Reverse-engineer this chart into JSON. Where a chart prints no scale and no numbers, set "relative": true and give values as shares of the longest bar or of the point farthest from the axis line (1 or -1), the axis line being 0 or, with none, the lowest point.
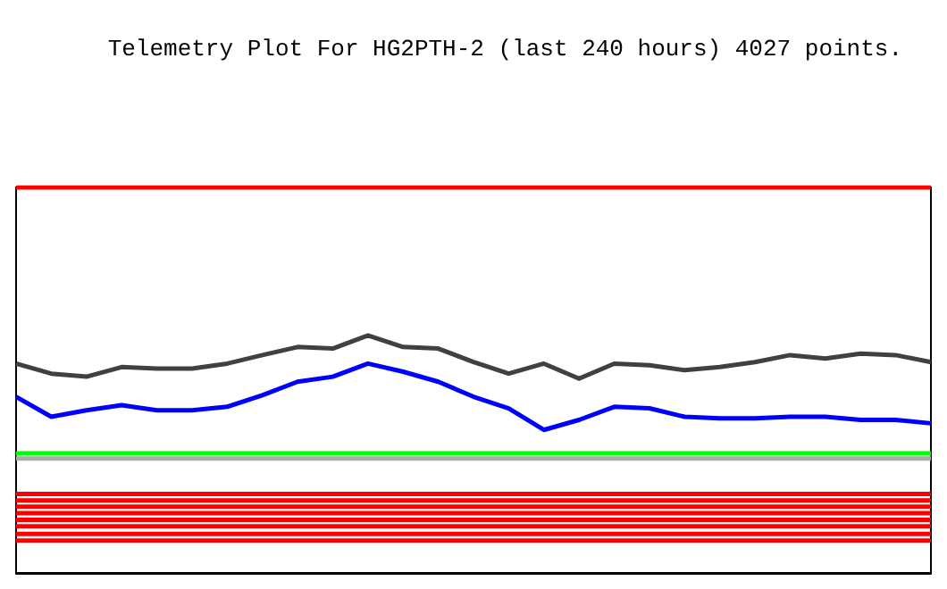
{
  "chart_data": {
    "type": "line",
    "title": "Telemetry Plot For HG2PTH-2 (last 240 hours) 4027 points.",
    "relative": true,
    "marker": "none",
    "line_style": "solid",
    "categories": [
      null,
      null,
      null,
      null,
      null,
      null,
      null,
      null,
      null,
      null,
      null,
      null,
      null,
      null,
      null,
      null,
      null,
      null,
      null,
      null,
      null,
      null,
      null,
      null,
      null,
      null,
      null
    ],
    "series": [
      {
        "color": "#ff0000",
        "values": [
          1,
          1,
          1,
          1,
          1,
          1,
          1,
          1,
          1,
          1,
          1,
          1,
          1,
          1,
          1,
          1,
          1,
          1,
          1,
          1,
          1,
          1,
          1,
          1,
          1,
          1,
          1
        ]
      },
      {
        "color": "#404040",
        "values": [
          0.543,
          0.517,
          0.509,
          0.534,
          0.53,
          0.53,
          0.543,
          0.565,
          0.586,
          0.582,
          0.616,
          0.586,
          0.582,
          0.547,
          0.517,
          0.543,
          0.504,
          0.543,
          0.539,
          0.526,
          0.534,
          0.547,
          0.565,
          0.556,
          0.569,
          0.565,
          0.547
        ]
      },
      {
        "color": "#0000ff",
        "values": [
          0.457,
          0.405,
          0.422,
          0.435,
          0.422,
          0.422,
          0.431,
          0.461,
          0.496,
          0.509,
          0.543,
          0.522,
          0.496,
          0.457,
          0.427,
          0.371,
          0.397,
          0.431,
          0.427,
          0.405,
          0.401,
          0.401,
          0.405,
          0.405,
          0.397,
          0.397,
          0.388
        ]
      },
      {
        "color": "#00ff00",
        "values": [
          0.31,
          0.31,
          0.31,
          0.31,
          0.31,
          0.31,
          0.31,
          0.31,
          0.31,
          0.31,
          0.31,
          0.31,
          0.31,
          0.31,
          0.31,
          0.31,
          0.31,
          0.31,
          0.31,
          0.31,
          0.31,
          0.31,
          0.31,
          0.31,
          0.31,
          0.31,
          0.31
        ]
      },
      {
        "color": "#aaaaaa",
        "values": [
          0.297,
          0.297,
          0.297,
          0.297,
          0.297,
          0.297,
          0.297,
          0.297,
          0.297,
          0.297,
          0.297,
          0.297,
          0.297,
          0.297,
          0.297,
          0.297,
          0.297,
          0.297,
          0.297,
          0.297,
          0.297,
          0.297,
          0.297,
          0.297,
          0.297,
          0.297,
          0.297
        ]
      },
      {
        "color": "#ff0000",
        "values": [
          0.205,
          0.205,
          0.205,
          0.205,
          0.205,
          0.205,
          0.205,
          0.205,
          0.205,
          0.205,
          0.205,
          0.205,
          0.205,
          0.205,
          0.205,
          0.205,
          0.205,
          0.205,
          0.205,
          0.205,
          0.205,
          0.205,
          0.205,
          0.205,
          0.205,
          0.205,
          0.205
        ]
      },
      {
        "color": "#ff0000",
        "values": [
          0.188,
          0.188,
          0.188,
          0.188,
          0.188,
          0.188,
          0.188,
          0.188,
          0.188,
          0.188,
          0.188,
          0.188,
          0.188,
          0.188,
          0.188,
          0.188,
          0.188,
          0.188,
          0.188,
          0.188,
          0.188,
          0.188,
          0.188,
          0.188,
          0.188,
          0.188,
          0.188
        ]
      },
      {
        "color": "#ff0000",
        "values": [
          0.172,
          0.172,
          0.172,
          0.172,
          0.172,
          0.172,
          0.172,
          0.172,
          0.172,
          0.172,
          0.172,
          0.172,
          0.172,
          0.172,
          0.172,
          0.172,
          0.172,
          0.172,
          0.172,
          0.172,
          0.172,
          0.172,
          0.172,
          0.172,
          0.172,
          0.172,
          0.172
        ]
      },
      {
        "color": "#ff0000",
        "values": [
          0.155,
          0.155,
          0.155,
          0.155,
          0.155,
          0.155,
          0.155,
          0.155,
          0.155,
          0.155,
          0.155,
          0.155,
          0.155,
          0.155,
          0.155,
          0.155,
          0.155,
          0.155,
          0.155,
          0.155,
          0.155,
          0.155,
          0.155,
          0.155,
          0.155,
          0.155,
          0.155
        ]
      },
      {
        "color": "#ff0000",
        "values": [
          0.138,
          0.138,
          0.138,
          0.138,
          0.138,
          0.138,
          0.138,
          0.138,
          0.138,
          0.138,
          0.138,
          0.138,
          0.138,
          0.138,
          0.138,
          0.138,
          0.138,
          0.138,
          0.138,
          0.138,
          0.138,
          0.138,
          0.138,
          0.138,
          0.138,
          0.138,
          0.138
        ]
      },
      {
        "color": "#ff0000",
        "values": [
          0.121,
          0.121,
          0.121,
          0.121,
          0.121,
          0.121,
          0.121,
          0.121,
          0.121,
          0.121,
          0.121,
          0.121,
          0.121,
          0.121,
          0.121,
          0.121,
          0.121,
          0.121,
          0.121,
          0.121,
          0.121,
          0.121,
          0.121,
          0.121,
          0.121,
          0.121,
          0.121
        ]
      },
      {
        "color": "#ff0000",
        "values": [
          0.101,
          0.101,
          0.101,
          0.101,
          0.101,
          0.101,
          0.101,
          0.101,
          0.101,
          0.101,
          0.101,
          0.101,
          0.101,
          0.101,
          0.101,
          0.101,
          0.101,
          0.101,
          0.101,
          0.101,
          0.101,
          0.101,
          0.101,
          0.101,
          0.101,
          0.101,
          0.101
        ]
      },
      {
        "color": "#ff0000",
        "values": [
          0.084,
          0.084,
          0.084,
          0.084,
          0.084,
          0.084,
          0.084,
          0.084,
          0.084,
          0.084,
          0.084,
          0.084,
          0.084,
          0.084,
          0.084,
          0.084,
          0.084,
          0.084,
          0.084,
          0.084,
          0.084,
          0.084,
          0.084,
          0.084,
          0.084,
          0.084,
          0.084
        ]
      }
    ]
  }
}
